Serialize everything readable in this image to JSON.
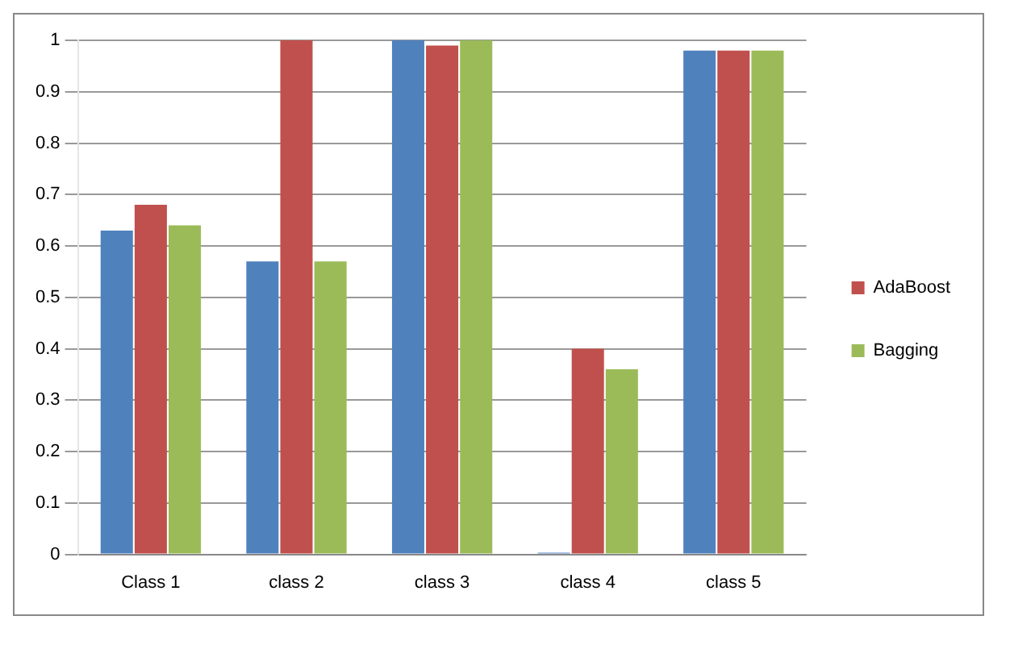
{
  "chart_data": {
    "type": "bar",
    "categories": [
      "Class 1",
      "class 2",
      "class 3",
      "class 4",
      "class 5"
    ],
    "series": [
      {
        "color": "#4f81bd",
        "values": [
          0.63,
          0.57,
          1.0,
          0.0,
          0.98
        ]
      },
      {
        "name": "AdaBoost",
        "color": "#c0504d",
        "values": [
          0.68,
          1.0,
          0.99,
          0.4,
          0.98
        ]
      },
      {
        "name": "Bagging",
        "color": "#9bbb59",
        "values": [
          0.64,
          0.57,
          1.0,
          0.36,
          0.98
        ]
      }
    ],
    "ylim": [
      0,
      1
    ],
    "yticks": [
      0,
      0.1,
      0.2,
      0.3,
      0.4,
      0.5,
      0.6,
      0.7,
      0.8,
      0.9,
      1
    ],
    "grid": "y",
    "legend": "right"
  }
}
